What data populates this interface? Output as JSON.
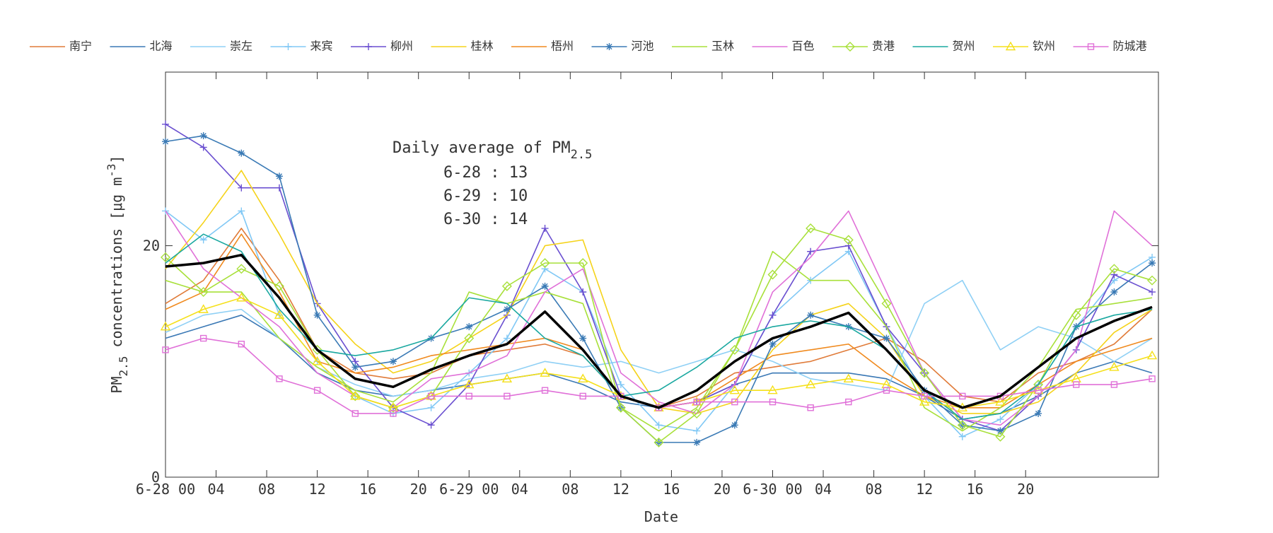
{
  "chart_data": {
    "type": "line",
    "xlabel": "Date",
    "ylabel": {
      "text": "PM",
      "sub": "2.5",
      "rest": " concentrations [μg m",
      "sup": "-3",
      "end": "]"
    },
    "annotation": {
      "title": "Daily average of PM",
      "title_sub": "2.5",
      "lines": [
        "6-28 : 13",
        "6-29 : 10",
        "6-30 : 14"
      ]
    },
    "x": [
      0,
      3,
      6,
      9,
      12,
      15,
      18,
      21,
      24,
      27,
      30,
      33,
      36,
      39,
      42,
      45,
      48,
      51,
      54,
      57,
      60,
      63,
      66,
      69,
      72,
      75,
      78
    ],
    "xlim": [
      0,
      78.5
    ],
    "xticks": [
      {
        "value": 0,
        "label": "6-28 00"
      },
      {
        "value": 4,
        "label": "04"
      },
      {
        "value": 8,
        "label": "08"
      },
      {
        "value": 12,
        "label": "12"
      },
      {
        "value": 16,
        "label": "16"
      },
      {
        "value": 20,
        "label": "20"
      },
      {
        "value": 24,
        "label": "6-29 00"
      },
      {
        "value": 28,
        "label": "04"
      },
      {
        "value": 32,
        "label": "08"
      },
      {
        "value": 36,
        "label": "12"
      },
      {
        "value": 40,
        "label": "16"
      },
      {
        "value": 44,
        "label": "20"
      },
      {
        "value": 48,
        "label": "6-30 00"
      },
      {
        "value": 52,
        "label": "04"
      },
      {
        "value": 56,
        "label": "08"
      },
      {
        "value": 60,
        "label": "12"
      },
      {
        "value": 64,
        "label": "16"
      },
      {
        "value": 68,
        "label": "20"
      }
    ],
    "ylim": [
      0,
      35
    ],
    "yticks": [
      0,
      20
    ],
    "grid": false,
    "legend": "top",
    "average": {
      "color": "#000000",
      "values": [
        18.2,
        18.5,
        19.2,
        15.5,
        11,
        8.5,
        7.8,
        9.3,
        10.5,
        11.5,
        14.3,
        11,
        7,
        6,
        7.5,
        10,
        12,
        13,
        14.2,
        11,
        7.5,
        6,
        7,
        9.5,
        12,
        13.5,
        14.7
      ]
    },
    "series": [
      {
        "name": "南宁",
        "color": "#e07b39",
        "marker": "none",
        "values": [
          15,
          17,
          21.5,
          17,
          11,
          9,
          8.5,
          9,
          10.5,
          11,
          11.5,
          10.5,
          7,
          6,
          7,
          9,
          9.5,
          10,
          11,
          12,
          10,
          7,
          6.5,
          9,
          10,
          11.5,
          14.5
        ]
      },
      {
        "name": "北海",
        "color": "#3a78b5",
        "marker": "none",
        "values": [
          12,
          13,
          14,
          12,
          9,
          7.5,
          7,
          7.5,
          8,
          8.5,
          9,
          8,
          6.5,
          6,
          6.5,
          8,
          9,
          9,
          9,
          8.5,
          7,
          5,
          5.5,
          7,
          9,
          10,
          9
        ]
      },
      {
        "name": "崇左",
        "color": "#8fd0f5",
        "marker": "none",
        "values": [
          12.5,
          14,
          14.5,
          12,
          9.5,
          8,
          7,
          7.5,
          8.5,
          9,
          10,
          9.5,
          10,
          9,
          10,
          11,
          10,
          8.5,
          8,
          7.5,
          15,
          17,
          11,
          13,
          12,
          10,
          12
        ]
      },
      {
        "name": "来宾",
        "color": "#80c8f5",
        "marker": "plus",
        "values": [
          23,
          20.5,
          23,
          14,
          10,
          7,
          5.5,
          6,
          9,
          12,
          18,
          16,
          8,
          4.5,
          4,
          8,
          14,
          17,
          19.5,
          13,
          7,
          3.5,
          5,
          8,
          13,
          17,
          19
        ]
      },
      {
        "name": "柳州",
        "color": "#6a4fd0",
        "marker": "plus",
        "values": [
          30.5,
          28.5,
          25,
          25,
          15,
          10,
          6,
          4.5,
          8,
          14,
          21.5,
          16,
          7,
          6,
          6.5,
          8,
          14,
          19.5,
          20,
          13,
          9,
          5,
          4,
          7,
          11,
          17.5,
          16
        ]
      },
      {
        "name": "桂林",
        "color": "#f5d31a",
        "marker": "none",
        "values": [
          18,
          22,
          26.5,
          21,
          15,
          11.5,
          9,
          10,
          12,
          14,
          20,
          20.5,
          11,
          6,
          5.5,
          6.5,
          11,
          14,
          15,
          12,
          7,
          5.5,
          5.5,
          6.5,
          9,
          12.5,
          14.5
        ]
      },
      {
        "name": "梧州",
        "color": "#f08a1e",
        "marker": "none",
        "values": [
          14.5,
          16,
          21,
          16,
          10,
          9,
          9.5,
          10.5,
          11,
          11.5,
          12,
          11,
          7,
          6,
          6.5,
          8.5,
          10.5,
          11,
          11.5,
          9,
          7,
          6,
          6,
          8,
          10,
          11,
          12
        ]
      },
      {
        "name": "河池",
        "color": "#3a7ab5",
        "marker": "asterisk",
        "values": [
          29,
          29.5,
          28,
          26,
          14,
          9.5,
          10,
          12,
          13,
          14.5,
          16.5,
          12,
          6,
          3,
          3,
          4.5,
          11.5,
          14,
          13,
          12,
          7.5,
          4.5,
          4,
          5.5,
          13,
          16,
          18.5
        ]
      },
      {
        "name": "玉林",
        "color": "#a8e03a",
        "marker": "none",
        "values": [
          17,
          16,
          16,
          12,
          9.5,
          7.5,
          6.5,
          9,
          16,
          15,
          16,
          15,
          6,
          4,
          6,
          11,
          19.5,
          17,
          17,
          13,
          6,
          4,
          6,
          9.5,
          14.5,
          15,
          15.5
        ]
      },
      {
        "name": "百色",
        "color": "#e070d8",
        "marker": "none",
        "values": [
          23,
          18,
          15.5,
          13,
          9,
          7,
          6,
          8.5,
          9,
          10.5,
          16,
          18,
          9,
          6.5,
          5.5,
          8,
          16,
          19,
          23,
          16,
          9,
          5,
          4.5,
          7,
          11,
          23,
          20
        ]
      },
      {
        "name": "贵港",
        "color": "#a8e03a",
        "marker": "diamond",
        "values": [
          19,
          16,
          18,
          16.5,
          11,
          7,
          6,
          7,
          12,
          16.5,
          18.5,
          18.5,
          6,
          3,
          5.5,
          11,
          17.5,
          21.5,
          20.5,
          15,
          9,
          4.5,
          3.5,
          8,
          14,
          18,
          17
        ]
      },
      {
        "name": "贺州",
        "color": "#1aa8a0",
        "marker": "none",
        "values": [
          18.5,
          21,
          19.5,
          14.5,
          11,
          10.5,
          11,
          12,
          15.5,
          15,
          12,
          10.5,
          7,
          7.5,
          9.5,
          12,
          13,
          13.5,
          13,
          11,
          7.5,
          5,
          5.5,
          8,
          13,
          14,
          14.5
        ]
      },
      {
        "name": "钦州",
        "color": "#f5e01a",
        "marker": "triangle",
        "values": [
          13,
          14.5,
          15.5,
          14,
          10,
          7,
          6,
          7,
          8,
          8.5,
          9,
          8.5,
          7,
          6,
          6.5,
          7.5,
          7.5,
          8,
          8.5,
          8,
          6.5,
          6,
          6.5,
          7.5,
          8.5,
          9.5,
          10.5
        ]
      },
      {
        "name": "防城港",
        "color": "#e070d8",
        "marker": "square",
        "values": [
          11,
          12,
          11.5,
          8.5,
          7.5,
          5.5,
          5.5,
          7,
          7,
          7,
          7.5,
          7,
          7,
          6,
          6.5,
          6.5,
          6.5,
          6,
          6.5,
          7.5,
          7,
          7,
          7,
          7.5,
          8,
          8,
          8.5
        ]
      }
    ]
  }
}
